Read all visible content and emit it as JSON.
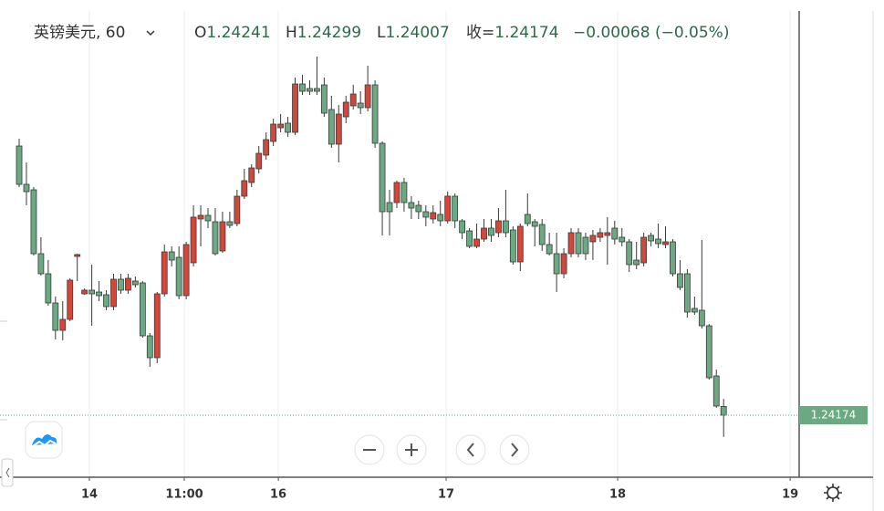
{
  "chart_data": {
    "type": "candlestick",
    "title": "英镑美元, 60",
    "ohlc_labels": [
      "O",
      "H",
      "L",
      "收="
    ],
    "change": "−0.00068 (−0.05%)",
    "up_color": "#d2473b",
    "down_color": "#6aa982",
    "grid": "x",
    "xlim": [
      -2.64,
      107.4
    ],
    "ylim": [
      1.23698,
      1.27359
    ],
    "xticks": [
      {
        "value": 9.67,
        "label": "14"
      },
      {
        "value": 22.74,
        "label": "11:00"
      },
      {
        "value": 35.68,
        "label": "16"
      },
      {
        "value": 58.79,
        "label": "17"
      },
      {
        "value": 82.41,
        "label": "18"
      },
      {
        "value": 106.16,
        "label": "19"
      }
    ],
    "x": [
      0,
      1,
      2,
      3,
      4,
      5,
      6,
      7,
      8,
      9,
      10,
      11,
      12,
      13,
      14,
      15,
      16,
      17,
      18,
      19,
      20,
      21,
      22,
      23,
      24,
      25,
      26,
      27,
      28,
      29,
      30,
      31,
      32,
      33,
      34,
      35,
      36,
      37,
      38,
      39,
      40,
      41,
      42,
      43,
      44,
      45,
      46,
      47,
      48,
      49,
      50,
      51,
      52,
      53,
      54,
      55,
      56,
      57,
      58,
      59,
      60,
      61,
      62,
      63,
      64,
      65,
      66,
      67,
      68,
      69,
      70,
      71,
      72,
      73,
      74,
      75,
      76,
      77,
      78,
      79,
      80,
      81,
      82,
      83,
      84,
      85,
      86,
      87,
      88,
      89,
      90,
      91,
      92,
      93,
      94,
      95,
      96,
      97
    ],
    "open": [
      1.26239,
      1.25945,
      1.25903,
      1.25413,
      1.25259,
      1.25035,
      1.24825,
      1.24909,
      1.25392,
      1.25105,
      1.25133,
      1.25119,
      1.25098,
      1.25007,
      1.25217,
      1.25133,
      1.25203,
      1.25189,
      1.24783,
      1.24615,
      1.25105,
      1.25427,
      1.25385,
      1.25091,
      1.25343,
      1.25679,
      1.25707,
      1.25658,
      1.25434,
      1.25658,
      1.25644,
      1.25854,
      1.25959,
      1.26064,
      1.26169,
      1.26274,
      1.26379,
      1.26414,
      1.26344,
      1.26715,
      1.2668,
      1.2668,
      1.26708,
      1.26519,
      1.26253,
      1.26463,
      1.26547,
      1.26568,
      1.26533,
      1.26708,
      1.2626,
      1.25805,
      1.25805,
      1.25959,
      1.25805,
      1.25784,
      1.25735,
      1.25679,
      1.25714,
      1.25665,
      1.25854,
      1.25665,
      1.25588,
      1.25469,
      1.25525,
      1.25609,
      1.25574,
      1.25665,
      1.25595,
      1.2535,
      1.25714,
      1.25658,
      1.25637,
      1.25483,
      1.25413,
      1.25259,
      1.25413,
      1.25574,
      1.25539,
      1.25504,
      1.25539,
      1.25553,
      1.25609,
      1.25539,
      1.25504,
      1.25364,
      1.25343,
      1.25553,
      1.25525,
      1.25483,
      1.25504,
      1.25259,
      1.25259,
      1.24993,
      1.24979,
      1.2486,
      1.24475,
      1.24241
    ],
    "high": [
      1.26295,
      1.26113,
      1.25924,
      1.25539,
      1.25364,
      1.25084,
      1.25049,
      1.25224,
      1.25413,
      1.25147,
      1.25329,
      1.25203,
      1.25133,
      1.25259,
      1.25259,
      1.25259,
      1.25238,
      1.25203,
      1.24804,
      1.25119,
      1.25483,
      1.25469,
      1.25469,
      1.25504,
      1.25784,
      1.25784,
      1.25763,
      1.25763,
      1.25735,
      1.25735,
      1.25903,
      1.26064,
      1.26099,
      1.26239,
      1.26344,
      1.26449,
      1.26484,
      1.26463,
      1.26764,
      1.26785,
      1.26743,
      1.26925,
      1.26764,
      1.26624,
      1.26554,
      1.26624,
      1.26708,
      1.26659,
      1.26855,
      1.26743,
      1.26274,
      1.25903,
      1.25973,
      1.25994,
      1.25854,
      1.25819,
      1.25784,
      1.25784,
      1.25819,
      1.25889,
      1.25875,
      1.25679,
      1.25609,
      1.25644,
      1.25679,
      1.25679,
      1.25763,
      1.25903,
      1.25623,
      1.25644,
      1.25875,
      1.25679,
      1.25679,
      1.25574,
      1.25574,
      1.25455,
      1.25609,
      1.25609,
      1.25574,
      1.25595,
      1.25609,
      1.25693,
      1.25665,
      1.25609,
      1.25525,
      1.25504,
      1.25574,
      1.25574,
      1.25644,
      1.25623,
      1.25525,
      1.25364,
      1.25294,
      1.25084,
      1.25518,
      1.24874,
      1.24524,
      1.24299
    ],
    "low": [
      1.25924,
      1.25784,
      1.25399,
      1.25245,
      1.25014,
      1.24755,
      1.24748,
      1.24895,
      1.25203,
      1.25098,
      1.2486,
      1.25049,
      1.24979,
      1.24979,
      1.25105,
      1.25105,
      1.25154,
      1.24769,
      1.24545,
      1.24573,
      1.25084,
      1.25315,
      1.25063,
      1.25063,
      1.25315,
      1.25469,
      1.25609,
      1.25399,
      1.2542,
      1.25609,
      1.25623,
      1.25833,
      1.25924,
      1.26029,
      1.26134,
      1.26239,
      1.26344,
      1.26309,
      1.26323,
      1.26631,
      1.26631,
      1.26631,
      1.26463,
      1.26225,
      1.26113,
      1.26414,
      1.26519,
      1.26484,
      1.26505,
      1.26225,
      1.25553,
      1.25553,
      1.25763,
      1.25735,
      1.25679,
      1.25679,
      1.25623,
      1.25644,
      1.25623,
      1.25644,
      1.25609,
      1.25525,
      1.25455,
      1.25455,
      1.25504,
      1.25504,
      1.25539,
      1.25539,
      1.25329,
      1.2528,
      1.25623,
      1.25469,
      1.25434,
      1.25399,
      1.25119,
      1.25224,
      1.25385,
      1.25385,
      1.25364,
      1.25364,
      1.25504,
      1.25329,
      1.25483,
      1.25469,
      1.25273,
      1.25294,
      1.25315,
      1.25469,
      1.25455,
      1.25455,
      1.25238,
      1.25133,
      1.24923,
      1.24944,
      1.24839,
      1.24447,
      1.2423,
      1.24007
    ],
    "close": [
      1.25945,
      1.25889,
      1.25413,
      1.25259,
      1.25035,
      1.24825,
      1.24909,
      1.2521,
      1.25406,
      1.25133,
      1.25105,
      1.25091,
      1.25007,
      1.25217,
      1.25133,
      1.25224,
      1.25175,
      1.24783,
      1.24615,
      1.25105,
      1.25427,
      1.25364,
      1.25091,
      1.25483,
      1.25693,
      1.25707,
      1.25665,
      1.25413,
      1.25658,
      1.2563,
      1.25854,
      1.25973,
      1.26071,
      1.26183,
      1.26288,
      1.26407,
      1.26407,
      1.26344,
      1.26715,
      1.26659,
      1.26659,
      1.26659,
      1.26491,
      1.26253,
      1.26484,
      1.26575,
      1.26638,
      1.26533,
      1.26708,
      1.2626,
      1.25735,
      1.25735,
      1.25959,
      1.25805,
      1.25763,
      1.25735,
      1.25693,
      1.25728,
      1.25665,
      1.25854,
      1.25665,
      1.25574,
      1.25469,
      1.25525,
      1.25609,
      1.25553,
      1.25665,
      1.25574,
      1.2535,
      1.25623,
      1.25644,
      1.25623,
      1.25483,
      1.25413,
      1.25259,
      1.25413,
      1.25574,
      1.25413,
      1.25413,
      1.25553,
      1.25574,
      1.25574,
      1.25525,
      1.25504,
      1.25329,
      1.25329,
      1.25539,
      1.25511,
      1.2549,
      1.25504,
      1.25259,
      1.25154,
      1.24965,
      1.24965,
      1.2486,
      1.24461,
      1.24244,
      1.24174
    ]
  }
}
